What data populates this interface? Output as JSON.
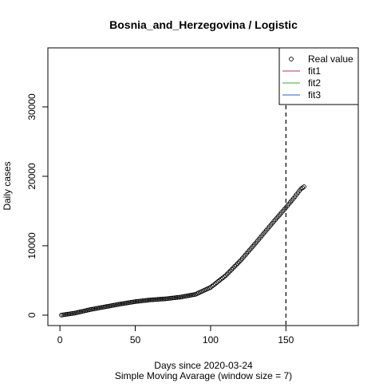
{
  "chart_data": {
    "type": "scatter",
    "title": "Bosnia_and_Herzegovina / Logistic",
    "xlabel": "Days since 2020-03-24",
    "subtitle": "Simple Moving Avarage (window size = 7)",
    "ylabel": "Daily cases",
    "xlim": [
      -8,
      198
    ],
    "ylim": [
      -1500,
      38500
    ],
    "xticks": [
      0,
      50,
      100,
      150
    ],
    "yticks": [
      0,
      10000,
      20000,
      30000
    ],
    "grid": false,
    "legend_position": "top-right",
    "legend": [
      {
        "label": "Real value",
        "kind": "point",
        "color": "#000000"
      },
      {
        "label": "fit1",
        "kind": "line",
        "color": "#b03070"
      },
      {
        "label": "fit2",
        "kind": "line",
        "color": "#33aa33"
      },
      {
        "label": "fit3",
        "kind": "line",
        "color": "#2060d0"
      }
    ],
    "vline": {
      "x": 150,
      "style": "dashed"
    },
    "series": [
      {
        "name": "Real value",
        "curve": [
          [
            1,
            10
          ],
          [
            10,
            300
          ],
          [
            20,
            800
          ],
          [
            30,
            1200
          ],
          [
            40,
            1600
          ],
          [
            50,
            1950
          ],
          [
            60,
            2200
          ],
          [
            70,
            2350
          ],
          [
            80,
            2600
          ],
          [
            90,
            3000
          ],
          [
            100,
            4000
          ],
          [
            110,
            5700
          ],
          [
            120,
            7900
          ],
          [
            130,
            10400
          ],
          [
            140,
            13000
          ],
          [
            150,
            15500
          ],
          [
            155,
            16800
          ],
          [
            160,
            18200
          ],
          [
            162,
            18500
          ]
        ]
      }
    ]
  }
}
